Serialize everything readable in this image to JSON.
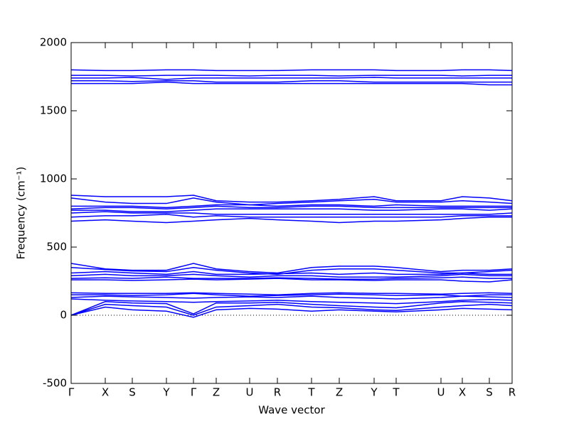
{
  "chart_data": {
    "type": "line",
    "xlabel": "Wave vector",
    "ylabel": "Frequency (cm⁻¹)",
    "color": "#0000ff",
    "zero_line": true,
    "xlim": [
      0,
      620
    ],
    "ylim": [
      -500,
      2000
    ],
    "yticks": [
      -500,
      0,
      500,
      1000,
      1500,
      2000
    ],
    "xticks": [
      {
        "value": 0,
        "label": "Γ"
      },
      {
        "value": 48,
        "label": "X"
      },
      {
        "value": 86,
        "label": "S"
      },
      {
        "value": 134,
        "label": "Y"
      },
      {
        "value": 172,
        "label": "Γ"
      },
      {
        "value": 204,
        "label": "Z"
      },
      {
        "value": 251,
        "label": "U"
      },
      {
        "value": 290,
        "label": "R"
      },
      {
        "value": 338,
        "label": "T"
      },
      {
        "value": 377,
        "label": "Z"
      },
      {
        "value": 426,
        "label": "Y"
      },
      {
        "value": 457,
        "label": "T"
      },
      {
        "value": 520,
        "label": "U"
      },
      {
        "value": 550,
        "label": "X"
      },
      {
        "value": 588,
        "label": "S"
      },
      {
        "value": 620,
        "label": "R"
      }
    ],
    "x": [
      0,
      48,
      86,
      134,
      172,
      204,
      251,
      290,
      338,
      377,
      426,
      457,
      520,
      550,
      588,
      620
    ],
    "series": [
      {
        "values": [
          0,
          60,
          40,
          30,
          -15,
          40,
          50,
          45,
          30,
          40,
          30,
          25,
          40,
          50,
          45,
          40
        ]
      },
      {
        "values": [
          0,
          80,
          70,
          60,
          0,
          60,
          70,
          80,
          60,
          55,
          40,
          35,
          60,
          70,
          80,
          70
        ]
      },
      {
        "values": [
          0,
          100,
          90,
          85,
          10,
          90,
          90,
          95,
          80,
          70,
          60,
          55,
          90,
          100,
          95,
          90
        ]
      },
      {
        "values": [
          120,
          110,
          105,
          100,
          95,
          100,
          105,
          110,
          100,
          95,
          90,
          85,
          100,
          110,
          115,
          110
        ]
      },
      {
        "values": [
          130,
          140,
          135,
          130,
          125,
          130,
          135,
          130,
          140,
          130,
          125,
          120,
          130,
          140,
          135,
          130
        ]
      },
      {
        "values": [
          150,
          150,
          145,
          150,
          160,
          150,
          140,
          145,
          150,
          155,
          150,
          145,
          150,
          140,
          150,
          150
        ]
      },
      {
        "values": [
          165,
          160,
          160,
          160,
          165,
          160,
          155,
          150,
          160,
          165,
          160,
          160,
          155,
          160,
          165,
          160
        ]
      },
      {
        "values": [
          380,
          340,
          330,
          330,
          380,
          340,
          320,
          310,
          350,
          360,
          360,
          350,
          320,
          330,
          330,
          340
        ]
      },
      {
        "values": [
          350,
          335,
          325,
          320,
          350,
          330,
          310,
          300,
          330,
          340,
          340,
          330,
          310,
          310,
          320,
          330
        ]
      },
      {
        "values": [
          310,
          320,
          310,
          300,
          320,
          300,
          300,
          305,
          310,
          300,
          310,
          300,
          300,
          310,
          300,
          300
        ]
      },
      {
        "values": [
          290,
          300,
          290,
          290,
          300,
          290,
          280,
          290,
          290,
          280,
          280,
          280,
          290,
          300,
          290,
          290
        ]
      },
      {
        "values": [
          270,
          275,
          270,
          280,
          270,
          270,
          270,
          275,
          270,
          265,
          265,
          270,
          275,
          280,
          270,
          270
        ]
      },
      {
        "values": [
          260,
          260,
          255,
          260,
          265,
          260,
          265,
          270,
          260,
          260,
          255,
          260,
          260,
          250,
          245,
          260
        ]
      },
      {
        "values": [
          880,
          870,
          870,
          870,
          880,
          840,
          830,
          830,
          840,
          850,
          870,
          840,
          840,
          870,
          860,
          840
        ]
      },
      {
        "values": [
          860,
          830,
          820,
          820,
          860,
          830,
          810,
          820,
          830,
          840,
          850,
          830,
          830,
          840,
          830,
          820
        ]
      },
      {
        "values": [
          800,
          800,
          800,
          790,
          800,
          810,
          810,
          800,
          810,
          810,
          800,
          810,
          800,
          800,
          800,
          800
        ]
      },
      {
        "values": [
          780,
          790,
          790,
          780,
          790,
          800,
          790,
          790,
          800,
          800,
          790,
          790,
          790,
          790,
          790,
          790
        ]
      },
      {
        "values": [
          770,
          770,
          760,
          760,
          770,
          780,
          780,
          780,
          780,
          780,
          770,
          770,
          780,
          780,
          770,
          780
        ]
      },
      {
        "values": [
          750,
          760,
          750,
          750,
          750,
          740,
          740,
          740,
          740,
          740,
          740,
          740,
          740,
          740,
          740,
          750
        ]
      },
      {
        "values": [
          720,
          730,
          730,
          740,
          720,
          730,
          720,
          720,
          720,
          720,
          720,
          720,
          720,
          730,
          730,
          730
        ]
      },
      {
        "values": [
          690,
          700,
          690,
          680,
          690,
          700,
          710,
          700,
          690,
          680,
          690,
          690,
          700,
          710,
          720,
          720
        ]
      },
      {
        "values": [
          1800,
          1795,
          1795,
          1800,
          1800,
          1795,
          1795,
          1795,
          1800,
          1800,
          1800,
          1795,
          1795,
          1800,
          1800,
          1795
        ]
      },
      {
        "values": [
          1760,
          1760,
          1755,
          1760,
          1760,
          1760,
          1755,
          1760,
          1760,
          1755,
          1760,
          1760,
          1760,
          1755,
          1760,
          1760
        ]
      },
      {
        "values": [
          1740,
          1740,
          1745,
          1730,
          1740,
          1740,
          1740,
          1740,
          1740,
          1740,
          1745,
          1740,
          1740,
          1740,
          1740,
          1740
        ]
      },
      {
        "values": [
          1720,
          1720,
          1715,
          1720,
          1720,
          1710,
          1710,
          1710,
          1720,
          1720,
          1710,
          1710,
          1710,
          1710,
          1710,
          1710
        ]
      },
      {
        "values": [
          1700,
          1700,
          1700,
          1710,
          1700,
          1700,
          1700,
          1700,
          1700,
          1700,
          1700,
          1700,
          1700,
          1700,
          1690,
          1690
        ]
      }
    ]
  }
}
